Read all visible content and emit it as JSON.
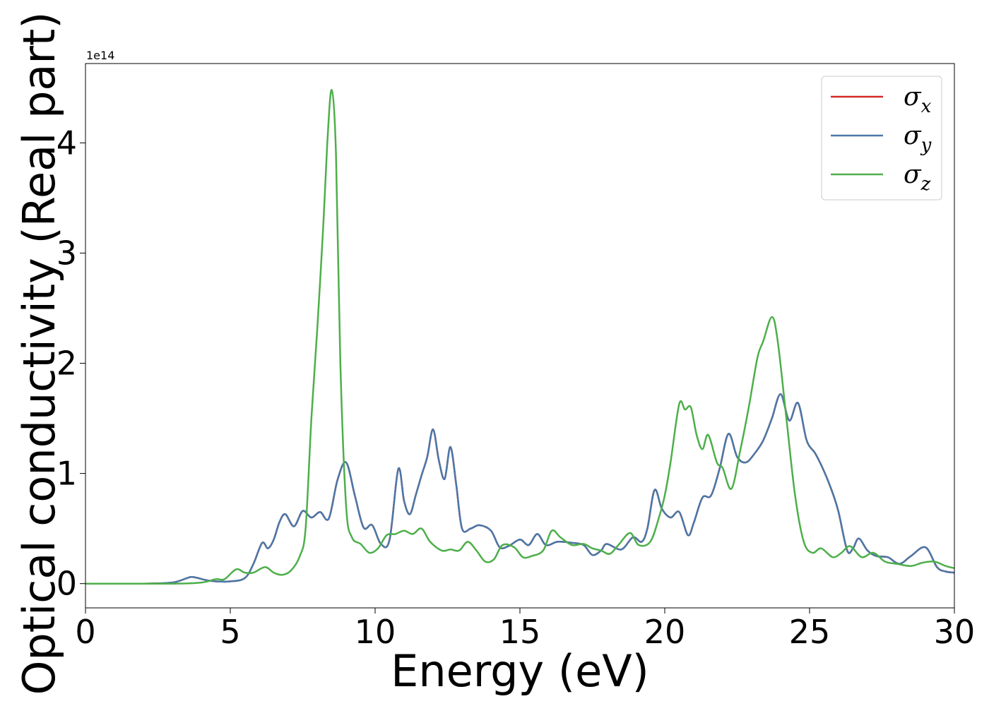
{
  "chart_data": {
    "type": "line",
    "title": "",
    "xlabel": "Energy (eV)",
    "ylabel": "Optical conductivity (Real part)",
    "y_offset_label": "1e14",
    "xlim": [
      0,
      30
    ],
    "ylim": [
      -0.22,
      4.72
    ],
    "x_ticks": [
      0,
      5,
      10,
      15,
      20,
      25,
      30
    ],
    "y_ticks": [
      0,
      1,
      2,
      3,
      4
    ],
    "grid": false,
    "legend_position": "top-right",
    "legend": [
      {
        "base": "σ",
        "sub": "x",
        "color": "#d62728"
      },
      {
        "base": "σ",
        "sub": "y",
        "color": "#4a78a8"
      },
      {
        "base": "σ",
        "sub": "z",
        "color": "#4daf4a"
      }
    ],
    "series": [
      {
        "name": "σx",
        "color": "#d62728",
        "points": [
          [
            0,
            0
          ],
          [
            2,
            0
          ],
          [
            3,
            0.01
          ],
          [
            3.5,
            0.05
          ],
          [
            3.7,
            0.06
          ],
          [
            4.2,
            0.03
          ],
          [
            4.5,
            0.02
          ],
          [
            5,
            0.02
          ],
          [
            5.5,
            0.05
          ],
          [
            5.8,
            0.18
          ],
          [
            6.1,
            0.37
          ],
          [
            6.3,
            0.32
          ],
          [
            6.5,
            0.4
          ],
          [
            6.7,
            0.56
          ],
          [
            6.9,
            0.63
          ],
          [
            7.2,
            0.52
          ],
          [
            7.5,
            0.66
          ],
          [
            7.8,
            0.6
          ],
          [
            8.1,
            0.65
          ],
          [
            8.4,
            0.59
          ],
          [
            8.7,
            0.94
          ],
          [
            9.0,
            1.1
          ],
          [
            9.3,
            0.8
          ],
          [
            9.6,
            0.51
          ],
          [
            9.9,
            0.53
          ],
          [
            10.2,
            0.36
          ],
          [
            10.5,
            0.4
          ],
          [
            10.8,
            1.04
          ],
          [
            11.0,
            0.75
          ],
          [
            11.2,
            0.63
          ],
          [
            11.4,
            0.8
          ],
          [
            11.6,
            0.98
          ],
          [
            11.8,
            1.15
          ],
          [
            12.0,
            1.4
          ],
          [
            12.2,
            1.12
          ],
          [
            12.4,
            0.95
          ],
          [
            12.6,
            1.24
          ],
          [
            12.8,
            0.9
          ],
          [
            13.0,
            0.5
          ],
          [
            13.3,
            0.5
          ],
          [
            13.6,
            0.53
          ],
          [
            14.0,
            0.48
          ],
          [
            14.3,
            0.33
          ],
          [
            14.6,
            0.34
          ],
          [
            15.0,
            0.4
          ],
          [
            15.3,
            0.35
          ],
          [
            15.6,
            0.45
          ],
          [
            15.9,
            0.35
          ],
          [
            16.3,
            0.38
          ],
          [
            16.8,
            0.37
          ],
          [
            17.2,
            0.35
          ],
          [
            17.5,
            0.26
          ],
          [
            17.8,
            0.3
          ],
          [
            18.0,
            0.36
          ],
          [
            18.5,
            0.31
          ],
          [
            18.9,
            0.42
          ],
          [
            19.2,
            0.38
          ],
          [
            19.4,
            0.5
          ],
          [
            19.65,
            0.85
          ],
          [
            19.9,
            0.68
          ],
          [
            20.2,
            0.6
          ],
          [
            20.5,
            0.65
          ],
          [
            20.8,
            0.44
          ],
          [
            21.0,
            0.55
          ],
          [
            21.3,
            0.78
          ],
          [
            21.6,
            0.8
          ],
          [
            21.9,
            1.05
          ],
          [
            22.2,
            1.36
          ],
          [
            22.5,
            1.15
          ],
          [
            22.8,
            1.1
          ],
          [
            23.1,
            1.18
          ],
          [
            23.4,
            1.3
          ],
          [
            23.7,
            1.5
          ],
          [
            24.0,
            1.72
          ],
          [
            24.3,
            1.48
          ],
          [
            24.6,
            1.64
          ],
          [
            24.9,
            1.3
          ],
          [
            25.2,
            1.18
          ],
          [
            25.5,
            1.02
          ],
          [
            25.8,
            0.82
          ],
          [
            26.0,
            0.65
          ],
          [
            26.3,
            0.3
          ],
          [
            26.5,
            0.32
          ],
          [
            26.7,
            0.41
          ],
          [
            27.0,
            0.3
          ],
          [
            27.3,
            0.25
          ],
          [
            27.7,
            0.24
          ],
          [
            28.1,
            0.18
          ],
          [
            28.5,
            0.25
          ],
          [
            29.0,
            0.33
          ],
          [
            29.4,
            0.15
          ],
          [
            29.7,
            0.11
          ],
          [
            30,
            0.1
          ]
        ]
      },
      {
        "name": "σy",
        "color": "#4a78a8",
        "points": [
          [
            0,
            0
          ],
          [
            2,
            0
          ],
          [
            3,
            0.01
          ],
          [
            3.5,
            0.05
          ],
          [
            3.7,
            0.06
          ],
          [
            4.2,
            0.03
          ],
          [
            4.5,
            0.02
          ],
          [
            5,
            0.02
          ],
          [
            5.5,
            0.05
          ],
          [
            5.8,
            0.18
          ],
          [
            6.1,
            0.37
          ],
          [
            6.3,
            0.32
          ],
          [
            6.5,
            0.4
          ],
          [
            6.7,
            0.56
          ],
          [
            6.9,
            0.63
          ],
          [
            7.2,
            0.52
          ],
          [
            7.5,
            0.66
          ],
          [
            7.8,
            0.6
          ],
          [
            8.1,
            0.65
          ],
          [
            8.4,
            0.59
          ],
          [
            8.7,
            0.94
          ],
          [
            9.0,
            1.1
          ],
          [
            9.3,
            0.8
          ],
          [
            9.6,
            0.51
          ],
          [
            9.9,
            0.53
          ],
          [
            10.2,
            0.36
          ],
          [
            10.5,
            0.4
          ],
          [
            10.8,
            1.04
          ],
          [
            11.0,
            0.75
          ],
          [
            11.2,
            0.63
          ],
          [
            11.4,
            0.8
          ],
          [
            11.6,
            0.98
          ],
          [
            11.8,
            1.15
          ],
          [
            12.0,
            1.4
          ],
          [
            12.2,
            1.12
          ],
          [
            12.4,
            0.95
          ],
          [
            12.6,
            1.24
          ],
          [
            12.8,
            0.9
          ],
          [
            13.0,
            0.5
          ],
          [
            13.3,
            0.5
          ],
          [
            13.6,
            0.53
          ],
          [
            14.0,
            0.48
          ],
          [
            14.3,
            0.33
          ],
          [
            14.6,
            0.34
          ],
          [
            15.0,
            0.4
          ],
          [
            15.3,
            0.35
          ],
          [
            15.6,
            0.45
          ],
          [
            15.9,
            0.35
          ],
          [
            16.3,
            0.38
          ],
          [
            16.8,
            0.37
          ],
          [
            17.2,
            0.35
          ],
          [
            17.5,
            0.26
          ],
          [
            17.8,
            0.3
          ],
          [
            18.0,
            0.36
          ],
          [
            18.5,
            0.31
          ],
          [
            18.9,
            0.42
          ],
          [
            19.2,
            0.38
          ],
          [
            19.4,
            0.5
          ],
          [
            19.65,
            0.85
          ],
          [
            19.9,
            0.68
          ],
          [
            20.2,
            0.6
          ],
          [
            20.5,
            0.65
          ],
          [
            20.8,
            0.44
          ],
          [
            21.0,
            0.55
          ],
          [
            21.3,
            0.78
          ],
          [
            21.6,
            0.8
          ],
          [
            21.9,
            1.05
          ],
          [
            22.2,
            1.36
          ],
          [
            22.5,
            1.15
          ],
          [
            22.8,
            1.1
          ],
          [
            23.1,
            1.18
          ],
          [
            23.4,
            1.3
          ],
          [
            23.7,
            1.5
          ],
          [
            24.0,
            1.72
          ],
          [
            24.3,
            1.48
          ],
          [
            24.6,
            1.64
          ],
          [
            24.9,
            1.3
          ],
          [
            25.2,
            1.18
          ],
          [
            25.5,
            1.02
          ],
          [
            25.8,
            0.82
          ],
          [
            26.0,
            0.65
          ],
          [
            26.3,
            0.3
          ],
          [
            26.5,
            0.32
          ],
          [
            26.7,
            0.41
          ],
          [
            27.0,
            0.3
          ],
          [
            27.3,
            0.25
          ],
          [
            27.7,
            0.24
          ],
          [
            28.1,
            0.18
          ],
          [
            28.5,
            0.25
          ],
          [
            29.0,
            0.33
          ],
          [
            29.4,
            0.15
          ],
          [
            29.7,
            0.11
          ],
          [
            30,
            0.1
          ]
        ]
      },
      {
        "name": "σz",
        "color": "#4daf4a",
        "points": [
          [
            0,
            0
          ],
          [
            3,
            0
          ],
          [
            4,
            0.01
          ],
          [
            4.5,
            0.04
          ],
          [
            4.8,
            0.04
          ],
          [
            5.2,
            0.13
          ],
          [
            5.5,
            0.1
          ],
          [
            5.8,
            0.1
          ],
          [
            6.2,
            0.15
          ],
          [
            6.5,
            0.1
          ],
          [
            6.8,
            0.08
          ],
          [
            7.1,
            0.12
          ],
          [
            7.4,
            0.25
          ],
          [
            7.6,
            0.5
          ],
          [
            7.8,
            1.5
          ],
          [
            8.0,
            2.3
          ],
          [
            8.2,
            3.2
          ],
          [
            8.35,
            4.0
          ],
          [
            8.5,
            4.48
          ],
          [
            8.65,
            3.9
          ],
          [
            8.8,
            2.0
          ],
          [
            9.0,
            0.7
          ],
          [
            9.2,
            0.42
          ],
          [
            9.5,
            0.36
          ],
          [
            9.8,
            0.28
          ],
          [
            10.1,
            0.32
          ],
          [
            10.4,
            0.44
          ],
          [
            10.7,
            0.45
          ],
          [
            11.0,
            0.48
          ],
          [
            11.3,
            0.45
          ],
          [
            11.6,
            0.5
          ],
          [
            11.9,
            0.38
          ],
          [
            12.3,
            0.3
          ],
          [
            12.6,
            0.31
          ],
          [
            12.9,
            0.3
          ],
          [
            13.2,
            0.38
          ],
          [
            13.5,
            0.3
          ],
          [
            13.8,
            0.2
          ],
          [
            14.1,
            0.22
          ],
          [
            14.4,
            0.35
          ],
          [
            14.8,
            0.33
          ],
          [
            15.1,
            0.24
          ],
          [
            15.4,
            0.25
          ],
          [
            15.8,
            0.3
          ],
          [
            16.1,
            0.48
          ],
          [
            16.4,
            0.42
          ],
          [
            16.8,
            0.35
          ],
          [
            17.2,
            0.36
          ],
          [
            17.5,
            0.32
          ],
          [
            17.8,
            0.3
          ],
          [
            18.1,
            0.27
          ],
          [
            18.4,
            0.35
          ],
          [
            18.8,
            0.46
          ],
          [
            19.1,
            0.35
          ],
          [
            19.5,
            0.38
          ],
          [
            19.8,
            0.6
          ],
          [
            20.0,
            0.8
          ],
          [
            20.2,
            1.1
          ],
          [
            20.5,
            1.63
          ],
          [
            20.7,
            1.58
          ],
          [
            20.9,
            1.6
          ],
          [
            21.1,
            1.35
          ],
          [
            21.3,
            1.22
          ],
          [
            21.5,
            1.35
          ],
          [
            21.8,
            1.1
          ],
          [
            22.0,
            1.05
          ],
          [
            22.3,
            0.86
          ],
          [
            22.6,
            1.2
          ],
          [
            22.9,
            1.6
          ],
          [
            23.2,
            2.05
          ],
          [
            23.4,
            2.2
          ],
          [
            23.7,
            2.42
          ],
          [
            23.9,
            2.2
          ],
          [
            24.2,
            1.5
          ],
          [
            24.5,
            0.8
          ],
          [
            24.8,
            0.38
          ],
          [
            25.1,
            0.28
          ],
          [
            25.4,
            0.32
          ],
          [
            25.8,
            0.24
          ],
          [
            26.1,
            0.28
          ],
          [
            26.4,
            0.34
          ],
          [
            26.8,
            0.24
          ],
          [
            27.2,
            0.28
          ],
          [
            27.6,
            0.2
          ],
          [
            28.0,
            0.18
          ],
          [
            28.5,
            0.16
          ],
          [
            28.9,
            0.19
          ],
          [
            29.3,
            0.2
          ],
          [
            29.7,
            0.16
          ],
          [
            30,
            0.14
          ]
        ]
      }
    ]
  }
}
